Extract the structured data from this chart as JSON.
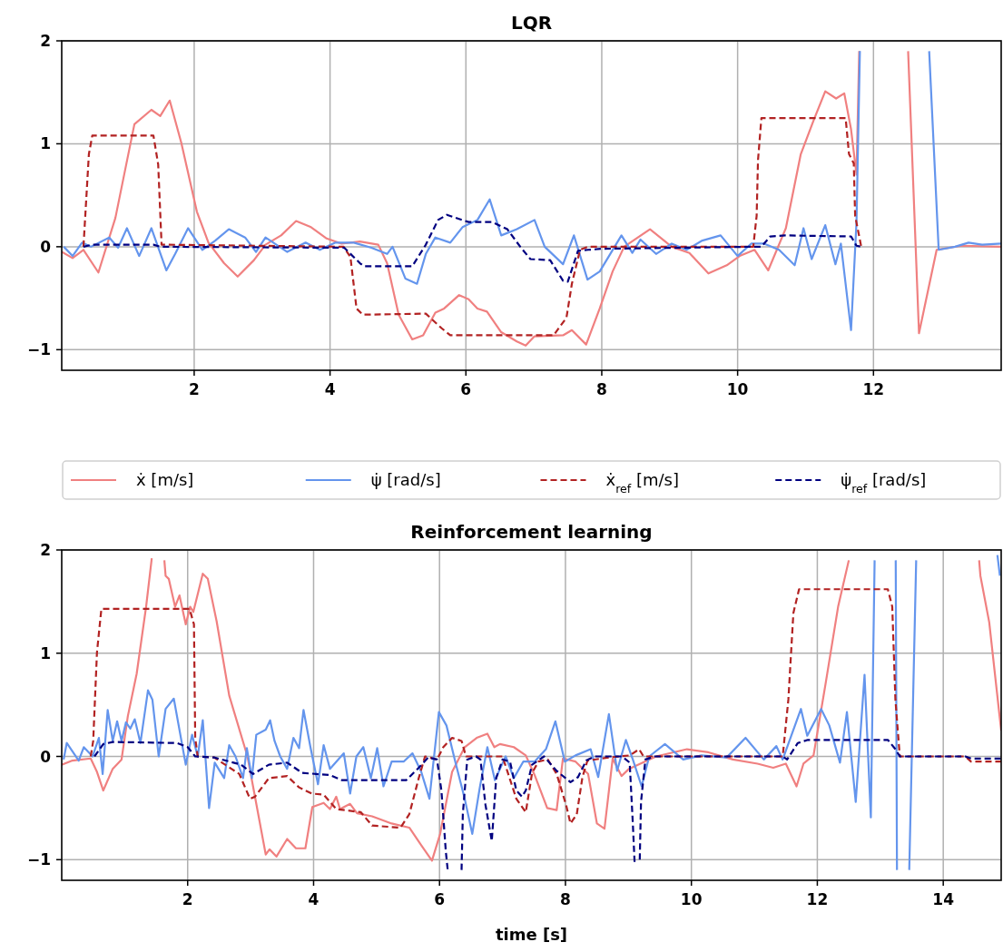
{
  "chart_data": [
    {
      "type": "line",
      "title": "LQR",
      "xlim": [
        0.05,
        13.88
      ],
      "ylim": [
        -1.2,
        2
      ],
      "xticks": [
        2,
        4,
        6,
        8,
        10,
        12
      ],
      "yticks": [
        -1,
        0,
        1,
        2
      ],
      "grid": true,
      "legend": "bottom",
      "series": [
        {
          "name": "ẋ [m/s]",
          "color": "#f08080",
          "line_style": "solid",
          "x": [
            0.05,
            0.21,
            0.37,
            0.59,
            0.84,
            1.12,
            1.37,
            1.5,
            1.64,
            1.81,
            2.04,
            2.21,
            2.44,
            2.64,
            2.88,
            3.05,
            3.28,
            3.5,
            3.72,
            3.95,
            4.17,
            4.44,
            4.71,
            4.84,
            5.01,
            5.21,
            5.37,
            5.55,
            5.68,
            5.9,
            6.04,
            6.17,
            6.31,
            6.52,
            6.75,
            6.88,
            7.01,
            7.43,
            7.56,
            7.77,
            7.97,
            8.16,
            8.33,
            8.71,
            9.03,
            9.29,
            9.57,
            9.84,
            10.03,
            10.25,
            10.45,
            10.71,
            10.93,
            11.12,
            11.29,
            11.45,
            11.57,
            11.67,
            11.75,
            11.79,
            12.1,
            12.51,
            12.67,
            12.93,
            13.3,
            13.88
          ],
          "values": [
            -0.05,
            -0.11,
            -0.03,
            -0.25,
            0.28,
            1.19,
            1.33,
            1.27,
            1.42,
            1.01,
            0.34,
            0.04,
            -0.16,
            -0.29,
            -0.13,
            0.02,
            0.11,
            0.25,
            0.19,
            0.08,
            0.03,
            0.05,
            0.02,
            -0.16,
            -0.66,
            -0.9,
            -0.86,
            -0.64,
            -0.6,
            -0.47,
            -0.51,
            -0.6,
            -0.63,
            -0.83,
            -0.92,
            -0.96,
            -0.87,
            -0.86,
            -0.81,
            -0.95,
            -0.6,
            -0.24,
            0,
            0.17,
            0,
            -0.06,
            -0.26,
            -0.18,
            -0.09,
            -0.03,
            -0.23,
            0.18,
            0.9,
            1.23,
            1.51,
            1.44,
            1.49,
            1.14,
            0.7,
            1.9,
            null,
            1.9,
            -0.84,
            -0.03,
            0.01,
            0
          ]
        },
        {
          "name": "ψ̇ [rad/s]",
          "color": "#6495ed",
          "line_style": "solid",
          "x": [
            0.08,
            0.21,
            0.35,
            0.48,
            0.75,
            0.88,
            1.01,
            1.19,
            1.37,
            1.59,
            1.72,
            1.91,
            2.12,
            2.31,
            2.51,
            2.75,
            2.91,
            3.05,
            3.37,
            3.64,
            3.85,
            4.08,
            4.35,
            4.61,
            4.84,
            4.92,
            5.11,
            5.28,
            5.41,
            5.55,
            5.77,
            5.95,
            6.17,
            6.35,
            6.52,
            6.75,
            7.01,
            7.16,
            7.43,
            7.59,
            7.79,
            7.97,
            8.29,
            8.45,
            8.57,
            8.8,
            9.03,
            9.25,
            9.48,
            9.75,
            10.0,
            10.2,
            10.39,
            10.61,
            10.84,
            10.97,
            11.09,
            11.29,
            11.44,
            11.52,
            11.67,
            11.75,
            11.8,
            12.3,
            12.82,
            12.96,
            13.2,
            13.4,
            13.6,
            13.88
          ],
          "values": [
            0,
            -0.09,
            0.04,
            0,
            0.09,
            -0.01,
            0.18,
            -0.09,
            0.18,
            -0.23,
            -0.07,
            0.18,
            -0.03,
            0.06,
            0.17,
            0.09,
            -0.05,
            0.09,
            -0.05,
            0.04,
            -0.03,
            0.04,
            0.04,
            -0.01,
            -0.07,
            0,
            -0.31,
            -0.36,
            -0.07,
            0.09,
            0.04,
            0.19,
            0.26,
            0.46,
            0.11,
            0.17,
            0.26,
            0,
            -0.17,
            0.11,
            -0.32,
            -0.24,
            0.11,
            -0.06,
            0.07,
            -0.07,
            0.03,
            -0.03,
            0.06,
            0.11,
            -0.09,
            0.03,
            0.03,
            -0.03,
            -0.18,
            0.18,
            -0.12,
            0.21,
            -0.17,
            0.03,
            -0.81,
            0.24,
            1.9,
            null,
            1.9,
            -0.03,
            0,
            0.04,
            0.02,
            0.03
          ]
        },
        {
          "name": "ẋ$_{ref}$ [m/s]",
          "color": "#b22222",
          "line_style": "dashed",
          "x": [
            0.37,
            0.45,
            0.5,
            1.4,
            1.47,
            1.52,
            4.2,
            4.3,
            4.39,
            4.48,
            5.41,
            5.64,
            5.77,
            7.29,
            7.48,
            7.56,
            7.68,
            7.8,
            10.23,
            10.28,
            10.3,
            10.35,
            11.59,
            11.64,
            11.71,
            11.73,
            11.82
          ],
          "values": [
            0,
            0.9,
            1.08,
            1.08,
            0.8,
            0.02,
            0,
            -0.1,
            -0.6,
            -0.66,
            -0.65,
            -0.79,
            -0.86,
            -0.86,
            -0.69,
            -0.36,
            -0.03,
            0,
            0,
            0.3,
            0.84,
            1.25,
            1.25,
            0.9,
            0.81,
            0.3,
            0
          ]
        },
        {
          "name": "ψ̇$_{ref}$ [rad/s]",
          "color": "#000080",
          "line_style": "dashed",
          "x": [
            0.37,
            0.5,
            1.4,
            1.5,
            4.21,
            4.44,
            4.5,
            5.21,
            5.41,
            5.59,
            5.72,
            5.9,
            6.04,
            6.39,
            6.61,
            6.8,
            6.95,
            7.24,
            7.43,
            7.5,
            7.65,
            7.8,
            8.0,
            10.2,
            10.35,
            10.48,
            10.7,
            11.67,
            11.75,
            11.82
          ],
          "values": [
            0,
            0.02,
            0.02,
            0,
            -0.01,
            -0.16,
            -0.19,
            -0.19,
            0.02,
            0.26,
            0.31,
            0.27,
            0.24,
            0.24,
            0.17,
            0,
            -0.12,
            -0.13,
            -0.33,
            -0.34,
            -0.04,
            -0.03,
            -0.02,
            0,
            0,
            0.1,
            0.11,
            0.1,
            0.01,
            0
          ]
        }
      ]
    },
    {
      "type": "line",
      "title": "Reinforcement learning",
      "xlabel": "time [s]",
      "xlim": [
        0,
        14.92
      ],
      "ylim": [
        -1.2,
        2
      ],
      "xticks": [
        2,
        4,
        6,
        8,
        10,
        12,
        14
      ],
      "yticks": [
        -1,
        0,
        1,
        2
      ],
      "grid": true,
      "series": [
        {
          "color": "#f08080",
          "line_style": "solid",
          "x": [
            0,
            0.17,
            0.46,
            0.56,
            0.66,
            0.81,
            0.95,
            1.05,
            1.19,
            1.34,
            1.43,
            1.52,
            1.63,
            1.65,
            1.7,
            1.8,
            1.87,
            1.97,
            2.04,
            2.09,
            2.24,
            2.32,
            2.46,
            2.66,
            2.95,
            3.24,
            3.3,
            3.41,
            3.58,
            3.72,
            3.87,
            3.98,
            4.16,
            4.26,
            4.36,
            4.42,
            4.58,
            4.69,
            4.93,
            5.24,
            5.52,
            5.71,
            5.88,
            6.01,
            6.2,
            6.4,
            6.59,
            6.76,
            6.87,
            6.96,
            7.18,
            7.37,
            7.51,
            7.71,
            7.86,
            7.96,
            8.16,
            8.36,
            8.5,
            8.62,
            8.75,
            8.89,
            9.01,
            9.19,
            9.44,
            9.93,
            10.27,
            10.66,
            11.05,
            11.3,
            11.5,
            11.67,
            11.78,
            11.94,
            12.13,
            12.33,
            12.5,
            13.5,
            14.57,
            14.59,
            14.73,
            14.92
          ],
          "values": [
            -0.08,
            -0.04,
            -0.02,
            -0.15,
            -0.33,
            -0.12,
            -0.03,
            0.39,
            0.8,
            1.45,
            1.92,
            null,
            1.9,
            1.75,
            1.72,
            1.45,
            1.56,
            1.28,
            1.45,
            1.4,
            1.77,
            1.72,
            1.31,
            0.59,
            0,
            -0.95,
            -0.9,
            -0.97,
            -0.8,
            -0.89,
            -0.89,
            -0.49,
            -0.45,
            -0.51,
            -0.39,
            -0.51,
            -0.46,
            -0.55,
            -0.58,
            -0.65,
            -0.69,
            -0.86,
            -1.01,
            -0.75,
            -0.15,
            0.09,
            0.18,
            0.22,
            0.09,
            0.12,
            0.09,
            0.01,
            -0.18,
            -0.5,
            -0.52,
            -0.02,
            -0.05,
            -0.17,
            -0.65,
            -0.7,
            -0.02,
            -0.19,
            -0.12,
            -0.07,
            0,
            0.07,
            0.04,
            -0.03,
            -0.07,
            -0.11,
            -0.07,
            -0.29,
            -0.07,
            0.01,
            0.7,
            1.45,
            1.9,
            null,
            1.9,
            1.75,
            1.3,
            0.25
          ]
        },
        {
          "color": "#6495ed",
          "line_style": "solid",
          "x": [
            0.03,
            0.08,
            0.27,
            0.35,
            0.49,
            0.59,
            0.65,
            0.73,
            0.81,
            0.88,
            0.95,
            1.02,
            1.09,
            1.16,
            1.25,
            1.37,
            1.44,
            1.54,
            1.65,
            1.78,
            1.97,
            2.07,
            2.16,
            2.24,
            2.34,
            2.43,
            2.58,
            2.66,
            2.76,
            2.88,
            2.94,
            3.02,
            3.09,
            3.24,
            3.31,
            3.38,
            3.47,
            3.58,
            3.68,
            3.77,
            3.84,
            3.95,
            4.07,
            4.16,
            4.26,
            4.48,
            4.58,
            4.68,
            4.79,
            4.91,
            5.01,
            5.11,
            5.24,
            5.43,
            5.57,
            5.71,
            5.84,
            5.99,
            6.11,
            6.25,
            6.4,
            6.52,
            6.64,
            6.76,
            6.88,
            7.05,
            7.18,
            7.33,
            7.51,
            7.69,
            7.84,
            7.99,
            8.16,
            8.4,
            8.52,
            8.69,
            8.82,
            8.96,
            9.07,
            9.21,
            9.33,
            9.58,
            9.87,
            10.16,
            10.56,
            10.86,
            11.15,
            11.35,
            11.45,
            11.74,
            11.84,
            12.06,
            12.19,
            12.36,
            12.47,
            12.61,
            12.75,
            12.85,
            12.91,
            13.05,
            13.245,
            13.265,
            13.35,
            13.46,
            13.57,
            14.2,
            14.86,
            14.9
          ],
          "values": [
            -0.03,
            0.13,
            -0.04,
            0.09,
            0,
            0.18,
            -0.17,
            0.45,
            0.15,
            0.34,
            0.15,
            0.33,
            0.27,
            0.36,
            0.13,
            0.64,
            0.55,
            0,
            0.46,
            0.56,
            -0.08,
            0.21,
            0,
            0.35,
            -0.5,
            -0.06,
            -0.21,
            0.11,
            0,
            -0.21,
            0.08,
            -0.21,
            0.21,
            0.26,
            0.35,
            0.15,
            0,
            -0.12,
            0.18,
            0.08,
            0.45,
            0.09,
            -0.27,
            0.11,
            -0.12,
            0.03,
            -0.36,
            0,
            0.09,
            -0.21,
            0.08,
            -0.29,
            -0.05,
            -0.05,
            0.03,
            -0.15,
            -0.41,
            0.43,
            0.3,
            -0.05,
            -0.41,
            -0.75,
            -0.3,
            0.09,
            -0.23,
            0,
            -0.21,
            -0.05,
            -0.05,
            0.07,
            0.34,
            -0.05,
            0.01,
            0.07,
            -0.2,
            0.41,
            -0.14,
            0.16,
            -0.03,
            -0.29,
            0,
            0.12,
            -0.03,
            0.01,
            -0.01,
            0.18,
            -0.03,
            0.1,
            -0.03,
            0.46,
            0.2,
            0.46,
            0.3,
            -0.06,
            0.43,
            -0.44,
            0.79,
            -0.59,
            1.9,
            null,
            1.9,
            -1.1,
            null,
            -1.1,
            1.9,
            null,
            1.95,
            1.75
          ]
        },
        {
          "color": "#b22222",
          "line_style": "dashed",
          "x": [
            0.46,
            0.5,
            0.56,
            0.63,
            2.03,
            2.1,
            2.12,
            2.16,
            2.42,
            2.82,
            2.99,
            3.07,
            3.29,
            3.58,
            3.77,
            3.97,
            4.16,
            4.36,
            4.75,
            4.93,
            5.38,
            5.52,
            5.67,
            5.77,
            5.96,
            6.06,
            6.2,
            6.35,
            6.42,
            7.0,
            7.22,
            7.37,
            7.47,
            7.57,
            7.72,
            7.86,
            8.01,
            8.08,
            8.18,
            8.27,
            8.35,
            8.69,
            9.02,
            9.17,
            9.24,
            11.45,
            11.54,
            11.62,
            11.71,
            13.12,
            13.19,
            13.24,
            13.31,
            14.35,
            14.44,
            14.92
          ],
          "values": [
            0,
            0.15,
            1.01,
            1.43,
            1.43,
            1.28,
            0.18,
            0,
            -0.01,
            -0.17,
            -0.41,
            -0.39,
            -0.21,
            -0.19,
            -0.3,
            -0.36,
            -0.37,
            -0.51,
            -0.54,
            -0.67,
            -0.69,
            -0.56,
            -0.21,
            0,
            -0.03,
            0.09,
            0.18,
            0.15,
            0,
            0,
            -0.41,
            -0.54,
            -0.16,
            -0.05,
            -0.03,
            -0.17,
            -0.47,
            -0.65,
            -0.56,
            -0.2,
            -0.04,
            -0.01,
            0.01,
            0.07,
            0,
            0,
            0.55,
            1.39,
            1.62,
            1.62,
            1.45,
            0.55,
            0,
            0,
            -0.05,
            -0.05
          ]
        },
        {
          "color": "#000080",
          "line_style": "dashed",
          "x": [
            0.52,
            0.66,
            0.81,
            1.83,
            2.0,
            2.12,
            2.42,
            2.85,
            3.04,
            3.29,
            3.58,
            3.82,
            4.26,
            4.45,
            5.47,
            5.67,
            5.82,
            5.96,
            6.03,
            6.1,
            6.13,
            6.2,
            6.35,
            6.37,
            6.44,
            6.58,
            6.65,
            6.73,
            6.83,
            6.9,
            7.0,
            7.12,
            7.22,
            7.31,
            7.37,
            7.47,
            7.66,
            7.86,
            8.08,
            8.2,
            8.33,
            8.46,
            8.9,
            9.02,
            9.07,
            9.1,
            9.14,
            9.18,
            9.2,
            9.27,
            9.42,
            11.45,
            11.52,
            11.69,
            11.85,
            13.12,
            13.24,
            13.31,
            14.35,
            14.44,
            14.92
          ],
          "values": [
            0,
            0.12,
            0.14,
            0.13,
            0.09,
            0,
            -0.01,
            -0.08,
            -0.17,
            -0.08,
            -0.06,
            -0.16,
            -0.18,
            -0.23,
            -0.23,
            -0.11,
            -0.01,
            -0.03,
            -0.33,
            -0.92,
            -1.1,
            null,
            -1.1,
            -0.56,
            -0.03,
            0,
            -0.03,
            -0.47,
            -0.82,
            -0.21,
            -0.03,
            -0.05,
            -0.33,
            -0.39,
            -0.33,
            -0.08,
            0,
            -0.14,
            -0.25,
            -0.2,
            -0.04,
            0,
            0,
            -0.06,
            -0.65,
            -1.05,
            null,
            -1,
            -0.44,
            -0.03,
            0,
            0,
            -0.03,
            0.13,
            0.16,
            0.16,
            0.07,
            0,
            0,
            -0.02,
            -0.02
          ]
        }
      ]
    }
  ]
}
